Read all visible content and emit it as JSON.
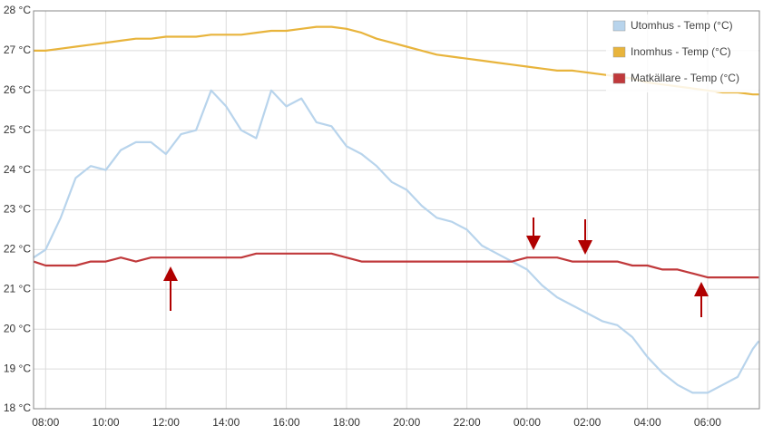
{
  "chart_data": {
    "type": "line",
    "x": [
      7.6,
      8,
      8.5,
      9,
      9.5,
      10,
      10.5,
      11,
      11.5,
      12,
      12.5,
      13,
      13.5,
      14,
      14.5,
      15,
      15.5,
      16,
      16.5,
      17,
      17.5,
      18,
      18.5,
      19,
      19.5,
      20,
      20.5,
      21,
      21.5,
      22,
      22.5,
      23,
      23.5,
      24,
      24.5,
      25,
      25.5,
      26,
      26.5,
      27,
      27.5,
      28,
      28.5,
      29,
      29.5,
      30,
      30.5,
      31,
      31.5,
      31.7
    ],
    "series": [
      {
        "name": "Utomhus - Temp (°C)",
        "color": "#b8d4ec",
        "values": [
          21.8,
          22.0,
          22.8,
          23.8,
          24.1,
          24.0,
          24.5,
          24.7,
          24.7,
          24.4,
          24.9,
          25.0,
          26.0,
          25.6,
          25.0,
          24.8,
          26.0,
          25.6,
          25.8,
          25.2,
          25.1,
          24.6,
          24.4,
          24.1,
          23.7,
          23.5,
          23.1,
          22.8,
          22.7,
          22.5,
          22.1,
          21.9,
          21.7,
          21.5,
          21.1,
          20.8,
          20.6,
          20.4,
          20.2,
          20.1,
          19.8,
          19.3,
          18.9,
          18.6,
          18.4,
          18.4,
          18.6,
          18.8,
          19.5,
          19.7
        ]
      },
      {
        "name": "Inomhus - Temp (°C)",
        "color": "#e8b43c",
        "values": [
          27.0,
          27.0,
          27.05,
          27.1,
          27.15,
          27.2,
          27.25,
          27.3,
          27.3,
          27.35,
          27.35,
          27.35,
          27.4,
          27.4,
          27.4,
          27.45,
          27.5,
          27.5,
          27.55,
          27.6,
          27.6,
          27.55,
          27.45,
          27.3,
          27.2,
          27.1,
          27.0,
          26.9,
          26.85,
          26.8,
          26.75,
          26.7,
          26.65,
          26.6,
          26.55,
          26.5,
          26.5,
          26.45,
          26.4,
          26.35,
          26.3,
          26.2,
          26.15,
          26.1,
          26.05,
          26.0,
          25.95,
          25.95,
          25.9,
          25.9
        ]
      },
      {
        "name": "Matkällare - Temp (°C)",
        "color": "#c0393b",
        "values": [
          21.7,
          21.6,
          21.6,
          21.6,
          21.7,
          21.7,
          21.8,
          21.7,
          21.8,
          21.8,
          21.8,
          21.8,
          21.8,
          21.8,
          21.8,
          21.9,
          21.9,
          21.9,
          21.9,
          21.9,
          21.9,
          21.8,
          21.7,
          21.7,
          21.7,
          21.7,
          21.7,
          21.7,
          21.7,
          21.7,
          21.7,
          21.7,
          21.7,
          21.8,
          21.8,
          21.8,
          21.7,
          21.7,
          21.7,
          21.7,
          21.6,
          21.6,
          21.5,
          21.5,
          21.4,
          21.3,
          21.3,
          21.3,
          21.3,
          21.3
        ]
      }
    ],
    "xlim": [
      7.6,
      31.72
    ],
    "xticks": [
      {
        "value": 8,
        "label": "08:00"
      },
      {
        "value": 10,
        "label": "10:00"
      },
      {
        "value": 12,
        "label": "12:00"
      },
      {
        "value": 14,
        "label": "14:00"
      },
      {
        "value": 16,
        "label": "16:00"
      },
      {
        "value": 18,
        "label": "18:00"
      },
      {
        "value": 20,
        "label": "20:00"
      },
      {
        "value": 22,
        "label": "22:00"
      },
      {
        "value": 24,
        "label": "00:00"
      },
      {
        "value": 26,
        "label": "02:00"
      },
      {
        "value": 28,
        "label": "04:00"
      },
      {
        "value": 30,
        "label": "06:00"
      }
    ],
    "ylim": [
      18,
      28
    ],
    "yticks": [
      {
        "value": 18,
        "label": "18 °C"
      },
      {
        "value": 19,
        "label": "19 °C"
      },
      {
        "value": 20,
        "label": "20 °C"
      },
      {
        "value": 21,
        "label": "21 °C"
      },
      {
        "value": 22,
        "label": "22 °C"
      },
      {
        "value": 23,
        "label": "23 °C"
      },
      {
        "value": 24,
        "label": "24 °C"
      },
      {
        "value": 25,
        "label": "25 °C"
      },
      {
        "value": 26,
        "label": "26 °C"
      },
      {
        "value": 27,
        "label": "27 °C"
      },
      {
        "value": 28,
        "label": "28 °C"
      }
    ],
    "grid": true,
    "legend": "top-right"
  }
}
